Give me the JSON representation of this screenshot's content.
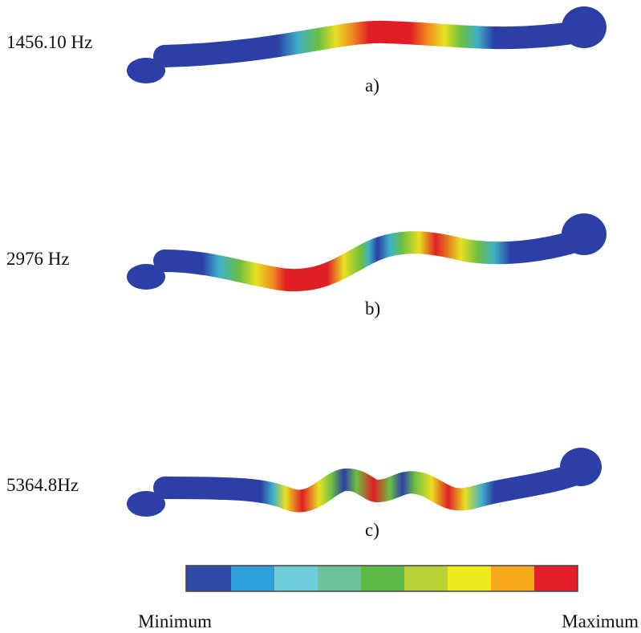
{
  "panels": [
    {
      "frequency": "1456.10 Hz",
      "caption": "a)"
    },
    {
      "frequency": "2976 Hz",
      "caption": "b)"
    },
    {
      "frequency": "5364.8Hz",
      "caption": "c)"
    }
  ],
  "legend": {
    "min_label": "Minimum",
    "max_label": "Maximum"
  }
}
